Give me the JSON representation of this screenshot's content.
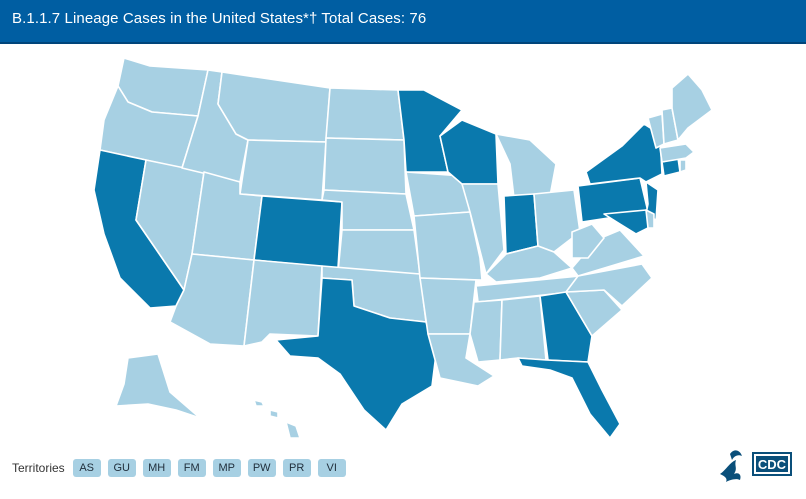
{
  "header": {
    "title": "B.1.1.7 Lineage Cases in the United States*† Total Cases: 76"
  },
  "colors": {
    "header": "#005ea2",
    "states_with_cases": "#0a79ad",
    "states_no_cases": "#a7d0e3",
    "territory_button": "#a7d0e3"
  },
  "map": {
    "states_with_cases": [
      "California",
      "Colorado",
      "Texas",
      "Minnesota",
      "Wisconsin",
      "Indiana",
      "Georgia",
      "Florida",
      "New York",
      "Pennsylvania",
      "Maryland",
      "Connecticut",
      "New Jersey"
    ],
    "legend_icon": "cdc-logo"
  },
  "territories": {
    "label": "Territories",
    "items": [
      "AS",
      "GU",
      "MH",
      "FM",
      "MP",
      "PW",
      "PR",
      "VI"
    ]
  },
  "logo": {
    "text": "CDC"
  }
}
